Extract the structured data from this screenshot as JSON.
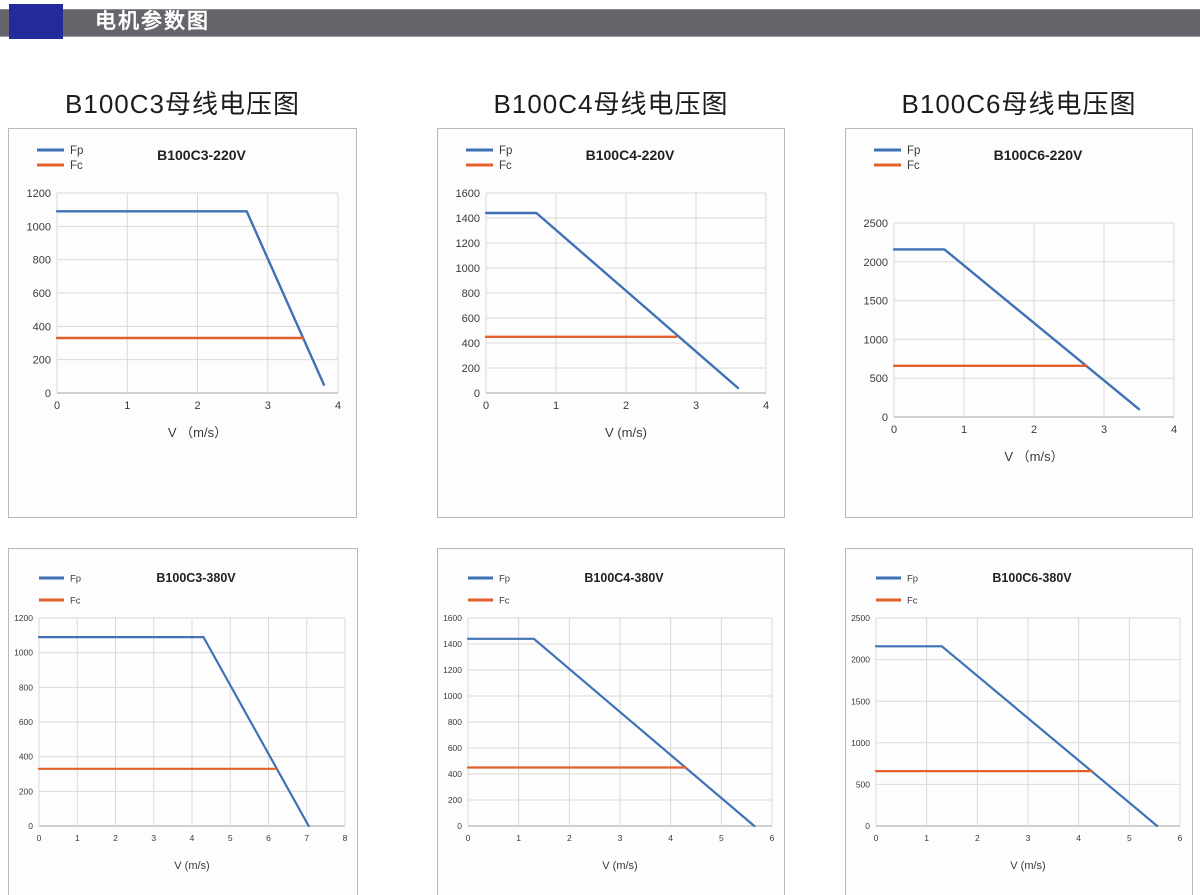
{
  "header": {
    "title": "电机参数图",
    "accent_color": "#232a9c",
    "bar_color": "#65656b",
    "text_color": "#ffffff"
  },
  "palette": {
    "fp_blue": "#3f72b5",
    "fc_orange": "#e2602b",
    "grid": "#d9d9d9",
    "axis": "#a3a3a3",
    "tick_text": "#3a3a3a",
    "title_text": "#222222",
    "card_border": "#b7babd"
  },
  "chart_data": [
    {
      "type": "line",
      "section_title": "B100C3母线电压图",
      "title": "B100C3-220V",
      "xlabel": "V （m/s）",
      "xlim": [
        0,
        4
      ],
      "xtick_step": 1,
      "ylim": [
        0,
        1200
      ],
      "ytick_step": 200,
      "grid": true,
      "legend_position": "top-left",
      "series": [
        {
          "name": "Fp",
          "color": "#3f72b5",
          "points": [
            [
              0,
              1090
            ],
            [
              2.7,
              1090
            ],
            [
              3.8,
              50
            ]
          ]
        },
        {
          "name": "Fc",
          "color": "#e2602b",
          "points": [
            [
              0,
              330
            ],
            [
              3.5,
              330
            ]
          ]
        }
      ]
    },
    {
      "type": "line",
      "section_title": "B100C4母线电压图",
      "title": "B100C4-220V",
      "xlabel": "V (m/s)",
      "xlim": [
        0,
        4
      ],
      "xtick_step": 1,
      "ylim": [
        0,
        1600
      ],
      "ytick_step": 200,
      "grid": true,
      "legend_position": "top-left",
      "series": [
        {
          "name": "Fp",
          "color": "#3f72b5",
          "points": [
            [
              0,
              1440
            ],
            [
              0.72,
              1440
            ],
            [
              3.6,
              40
            ]
          ]
        },
        {
          "name": "Fc",
          "color": "#e2602b",
          "points": [
            [
              0,
              450
            ],
            [
              2.72,
              450
            ]
          ]
        }
      ]
    },
    {
      "type": "line",
      "section_title": "B100C6母线电压图",
      "title": "B100C6-220V",
      "xlabel": "V （m/s）",
      "xlim": [
        0,
        4
      ],
      "xtick_step": 1,
      "ylim": [
        0,
        2500
      ],
      "ytick_step": 500,
      "grid": true,
      "legend_position": "top-left",
      "plot_override": {
        "t": 94,
        "b": 100
      },
      "series": [
        {
          "name": "Fp",
          "color": "#3f72b5",
          "points": [
            [
              0,
              2160
            ],
            [
              0.72,
              2160
            ],
            [
              3.5,
              100
            ]
          ]
        },
        {
          "name": "Fc",
          "color": "#e2602b",
          "points": [
            [
              0,
              660
            ],
            [
              2.75,
              660
            ]
          ]
        }
      ]
    },
    {
      "type": "line",
      "section_title": "",
      "title": "B100C3-380V",
      "xlabel": "V (m/s)",
      "xlim": [
        0,
        8
      ],
      "xtick_step": 1,
      "ylim": [
        0,
        1200
      ],
      "ytick_step": 200,
      "grid": true,
      "legend_position": "top-left",
      "series": [
        {
          "name": "Fp",
          "color": "#3f72b5",
          "points": [
            [
              0,
              1090
            ],
            [
              4.3,
              1090
            ],
            [
              7.05,
              0
            ]
          ]
        },
        {
          "name": "Fc",
          "color": "#e2602b",
          "points": [
            [
              0,
              330
            ],
            [
              6.2,
              330
            ]
          ]
        }
      ]
    },
    {
      "type": "line",
      "section_title": "",
      "title": "B100C4-380V",
      "xlabel": "V (m/s)",
      "xlim": [
        0,
        6
      ],
      "xtick_step": 1,
      "ylim": [
        0,
        1600
      ],
      "ytick_step": 200,
      "grid": true,
      "legend_position": "top-left",
      "series": [
        {
          "name": "Fp",
          "color": "#3f72b5",
          "points": [
            [
              0,
              1440
            ],
            [
              1.3,
              1440
            ],
            [
              5.65,
              0
            ]
          ]
        },
        {
          "name": "Fc",
          "color": "#e2602b",
          "points": [
            [
              0,
              450
            ],
            [
              4.3,
              450
            ]
          ]
        }
      ]
    },
    {
      "type": "line",
      "section_title": "",
      "title": "B100C6-380V",
      "xlabel": "V (m/s)",
      "xlim": [
        0,
        6
      ],
      "xtick_step": 1,
      "ylim": [
        0,
        2500
      ],
      "ytick_step": 500,
      "grid": true,
      "legend_position": "top-left",
      "series": [
        {
          "name": "Fp",
          "color": "#3f72b5",
          "points": [
            [
              0,
              2160
            ],
            [
              1.3,
              2160
            ],
            [
              5.55,
              0
            ]
          ]
        },
        {
          "name": "Fc",
          "color": "#e2602b",
          "points": [
            [
              0,
              660
            ],
            [
              4.26,
              660
            ]
          ]
        }
      ]
    }
  ]
}
